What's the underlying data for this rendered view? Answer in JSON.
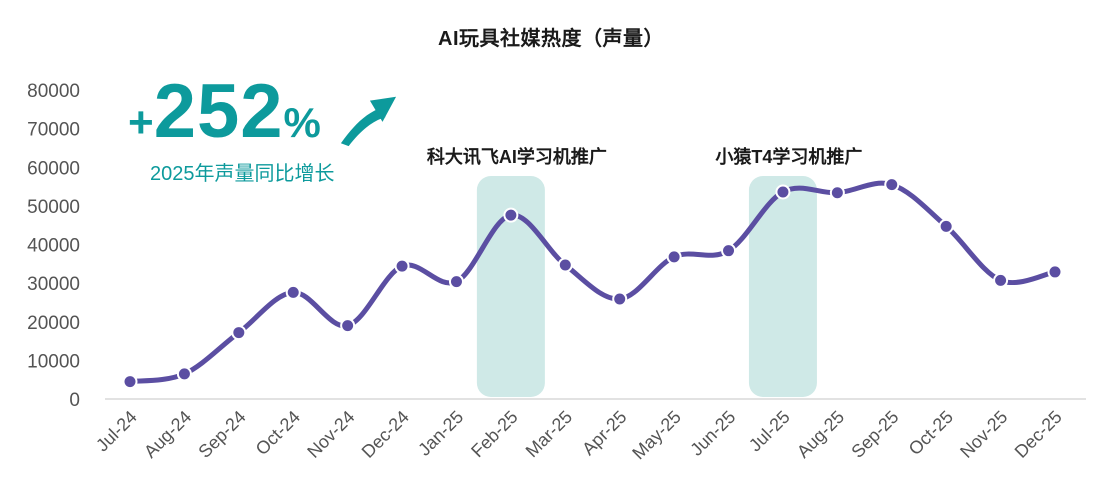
{
  "title": "AI玩具社媒热度（声量）",
  "stat": {
    "plus": "+",
    "value": "252",
    "percent": "%",
    "caption": "2025年声量同比增长"
  },
  "chart_data": {
    "type": "line",
    "title": "AI玩具社媒热度（声量）",
    "categories": [
      "Jul-24",
      "Aug-24",
      "Sep-24",
      "Oct-24",
      "Nov-24",
      "Dec-24",
      "Jan-25",
      "Feb-25",
      "Mar-25",
      "Apr-25",
      "May-25",
      "Jun-25",
      "Jul-25",
      "Aug-25",
      "Sep-25",
      "Oct-25",
      "Nov-25",
      "Dec-25"
    ],
    "series": [
      {
        "name": "声量",
        "values": [
          4500,
          6500,
          17200,
          27600,
          19000,
          34400,
          30400,
          47600,
          34700,
          25900,
          36800,
          38400,
          53600,
          53400,
          55500,
          44700,
          30700,
          32900
        ]
      }
    ],
    "ylim": [
      0,
      80000
    ],
    "yticks": [
      0,
      10000,
      20000,
      30000,
      40000,
      50000,
      60000,
      70000,
      80000
    ],
    "xlabel": "",
    "ylabel": "",
    "grid": false,
    "legend": "none",
    "annotations": [
      {
        "category": "Feb-25",
        "label": "科大讯飞AI学习机推广"
      },
      {
        "category": "Jul-25",
        "label": "小猿T4学习机推广"
      }
    ]
  },
  "colors": {
    "accent_teal": "#0d9a9c",
    "line_purple": "#5b4ea2",
    "highlight_band": "#cfe9e7",
    "axis_text": "#545454",
    "axis_line": "#d9d9d9",
    "annotation_text": "#1a1a1a"
  }
}
